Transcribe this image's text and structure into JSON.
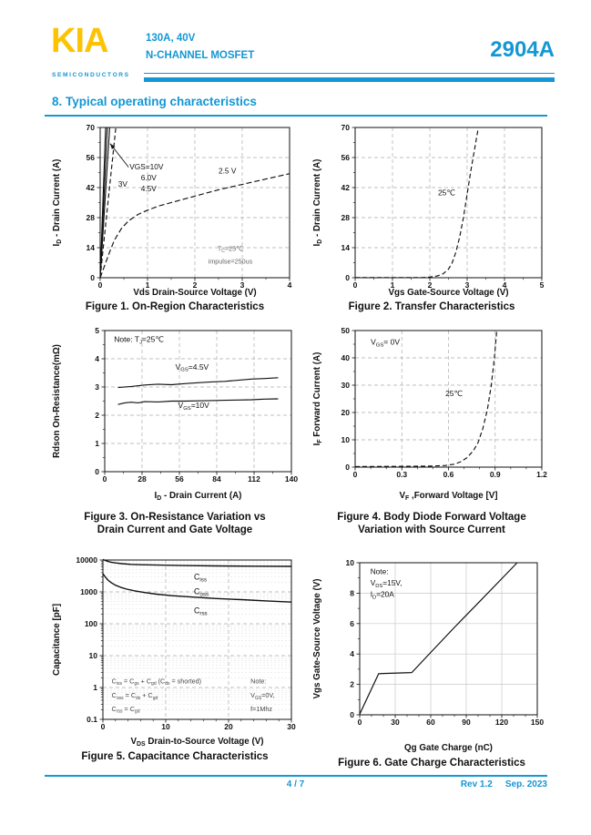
{
  "colors": {
    "accent": "#1397D5",
    "logo_yellow": "#FDC303"
  },
  "header": {
    "logo": "KIA",
    "logo_sub": "SEMICONDUCTORS",
    "rating": "130A, 40V",
    "device": "N-CHANNEL MOSFET",
    "part": "2904A"
  },
  "section": {
    "title": "8. Typical operating characteristics"
  },
  "footer": {
    "page": "4 / 7",
    "rev": "Rev 1.2",
    "date": "Sep. 2023"
  },
  "chart_data": [
    {
      "type": "line",
      "caption_lines": [
        "Figure 1. On-Region Characteristics"
      ],
      "xlabel": "Vds Drain-Source Voltage (V)",
      "ylabel": "I~D~ - Drain Current (A)",
      "xlim": [
        0,
        4
      ],
      "ylim": [
        0,
        70
      ],
      "xticks": [
        0,
        1,
        2,
        3,
        4
      ],
      "yticks": [
        0,
        14,
        28,
        42,
        56,
        70
      ],
      "xminor": 0.5,
      "yminor": 7,
      "grid": "dash",
      "series": [
        {
          "name": "VGS=10V",
          "points": [
            [
              0,
              0
            ],
            [
              0.115,
              70
            ]
          ]
        },
        {
          "name": "VGS=6.0V",
          "points": [
            [
              0,
              0
            ],
            [
              0.15,
              70
            ]
          ]
        },
        {
          "name": "VGS=4.5V",
          "points": [
            [
              0,
              0
            ],
            [
              0.2,
              70
            ]
          ]
        },
        {
          "name": "VGS=3V",
          "dash": "5,3",
          "points": [
            [
              0,
              0
            ],
            [
              0.14,
              30
            ],
            [
              0.33,
              70
            ]
          ]
        },
        {
          "name": "VGS=2.5V",
          "dash": "6,3",
          "points": [
            [
              0,
              0
            ],
            [
              0.1,
              6
            ],
            [
              0.2,
              12
            ],
            [
              0.3,
              17.5
            ],
            [
              0.45,
              23
            ],
            [
              0.6,
              26.5
            ],
            [
              0.8,
              29.5
            ],
            [
              1.0,
              31.5
            ],
            [
              1.25,
              33.5
            ],
            [
              1.5,
              35
            ],
            [
              2.0,
              38
            ],
            [
              2.5,
              41
            ],
            [
              3.0,
              43.5
            ],
            [
              3.5,
              46
            ],
            [
              4.0,
              48.5
            ]
          ]
        }
      ],
      "annotations": [
        {
          "text": "VGS=10V",
          "x": 0.62,
          "y": 50.5,
          "anchor": "start",
          "size": 8.3
        },
        {
          "text": "6.0V",
          "x": 0.86,
          "y": 45.3,
          "anchor": "start",
          "size": 8.3
        },
        {
          "text": "4.5V",
          "x": 0.86,
          "y": 40.3,
          "anchor": "start",
          "size": 8.3
        },
        {
          "text": "3V",
          "x": 0.38,
          "y": 42.5,
          "anchor": "start",
          "size": 8.3
        },
        {
          "text": "2.5 V",
          "x": 2.5,
          "y": 48.5,
          "anchor": "start",
          "size": 8.3
        },
        {
          "text": "T~C~=25℃",
          "x": 2.75,
          "y": 12.5,
          "anchor": "middle",
          "size": 7.2,
          "color": "#666"
        },
        {
          "text": "impulse=250us",
          "x": 2.75,
          "y": 6.5,
          "anchor": "middle",
          "size": 7.2,
          "color": "#666"
        }
      ],
      "arrows": [
        {
          "x1": 0.6,
          "y1": 51.5,
          "x2": 0.21,
          "y2": 62.5
        }
      ]
    },
    {
      "type": "line",
      "caption_lines": [
        "Figure 2. Transfer Characteristics"
      ],
      "xlabel": "Vgs Gate-Source Voltage (V)",
      "ylabel": "I~D~ - Drain Current (A)",
      "xlim": [
        0,
        5
      ],
      "ylim": [
        0,
        70
      ],
      "xticks": [
        0,
        1,
        2,
        3,
        4,
        5
      ],
      "yticks": [
        0,
        14,
        28,
        42,
        56,
        70
      ],
      "xminor": 0.5,
      "yminor": 7,
      "grid": "dash",
      "series": [
        {
          "name": "25C",
          "dash": "5,3",
          "points": [
            [
              0,
              0.1
            ],
            [
              1.8,
              0.1
            ],
            [
              2.0,
              0.3
            ],
            [
              2.2,
              0.8
            ],
            [
              2.35,
              1.8
            ],
            [
              2.5,
              4
            ],
            [
              2.6,
              7
            ],
            [
              2.7,
              12
            ],
            [
              2.8,
              19
            ],
            [
              2.9,
              28
            ],
            [
              3.0,
              39
            ],
            [
              3.1,
              50
            ],
            [
              3.2,
              60
            ],
            [
              3.3,
              70
            ]
          ]
        }
      ],
      "annotations": [
        {
          "text": "25℃",
          "x": 2.45,
          "y": 38.5,
          "anchor": "middle",
          "size": 8.5
        }
      ]
    },
    {
      "type": "line",
      "caption_lines": [
        "Figure 3. On-Resistance Variation  vs",
        "Drain Current and Gate Voltage"
      ],
      "xlabel": "I~D~ - Drain Current (A)",
      "ylabel": "Rdson On-Resistance(mΩ)",
      "xlim": [
        0,
        140
      ],
      "ylim": [
        0,
        5
      ],
      "xticks": [
        0,
        28,
        56,
        84,
        112,
        140
      ],
      "yticks": [
        0,
        1,
        2,
        3,
        4,
        5
      ],
      "xminor": 14,
      "yminor": 0.5,
      "grid": "dash",
      "series": [
        {
          "name": "VGS=4.5V",
          "points": [
            [
              10,
              2.98
            ],
            [
              20,
              3.02
            ],
            [
              30,
              3.07
            ],
            [
              40,
              3.1
            ],
            [
              50,
              3.08
            ],
            [
              60,
              3.12
            ],
            [
              70,
              3.15
            ],
            [
              80,
              3.18
            ],
            [
              90,
              3.2
            ],
            [
              100,
              3.24
            ],
            [
              110,
              3.28
            ],
            [
              120,
              3.3
            ],
            [
              130,
              3.33
            ]
          ]
        },
        {
          "name": "VGS=10V",
          "points": [
            [
              10,
              2.38
            ],
            [
              15,
              2.44
            ],
            [
              20,
              2.46
            ],
            [
              25,
              2.44
            ],
            [
              30,
              2.48
            ],
            [
              40,
              2.47
            ],
            [
              50,
              2.5
            ],
            [
              60,
              2.5
            ],
            [
              70,
              2.51
            ],
            [
              80,
              2.52
            ],
            [
              90,
              2.53
            ],
            [
              100,
              2.54
            ],
            [
              110,
              2.55
            ],
            [
              120,
              2.57
            ],
            [
              130,
              2.58
            ]
          ]
        }
      ],
      "annotations": [
        {
          "text": "Note:  T~J~=25℃",
          "x": 7,
          "y": 4.6,
          "anchor": "start",
          "size": 8.5
        },
        {
          "text": "V~GS~=4.5V",
          "x": 53,
          "y": 3.62,
          "anchor": "start",
          "size": 8.5
        },
        {
          "text": "V~GS~=10V",
          "x": 55,
          "y": 2.26,
          "anchor": "start",
          "size": 8.5
        }
      ]
    },
    {
      "type": "line",
      "caption_lines": [
        "Figure 4. Body Diode Forward Voltage",
        "Variation with Source Current"
      ],
      "xlabel": "V~F~ ,Forward Voltage [V]",
      "ylabel": "I~F~ Forward Current (A)",
      "xlim": [
        0,
        1.2
      ],
      "ylim": [
        0,
        50
      ],
      "xticks": [
        0,
        0.3,
        0.6,
        0.9,
        1.2
      ],
      "xtick_labels": [
        "0",
        "0.3",
        "0.6",
        "0.9",
        "1.2"
      ],
      "yticks": [
        0,
        10,
        20,
        30,
        40,
        50
      ],
      "xminor": 0.1,
      "yminor": 5,
      "grid": "dash",
      "series": [
        {
          "name": "25C",
          "dash": "5,3",
          "points": [
            [
              0,
              0.2
            ],
            [
              0.35,
              0.3
            ],
            [
              0.5,
              0.4
            ],
            [
              0.58,
              0.6
            ],
            [
              0.64,
              1.1
            ],
            [
              0.68,
              2
            ],
            [
              0.72,
              3.5
            ],
            [
              0.76,
              6
            ],
            [
              0.79,
              9
            ],
            [
              0.82,
              14
            ],
            [
              0.85,
              21
            ],
            [
              0.875,
              30
            ],
            [
              0.895,
              40
            ],
            [
              0.91,
              50
            ]
          ]
        }
      ],
      "annotations": [
        {
          "text": "V~GS~= 0V",
          "x": 0.1,
          "y": 44.8,
          "anchor": "start",
          "size": 8.5
        },
        {
          "text": "25℃",
          "x": 0.58,
          "y": 26,
          "anchor": "start",
          "size": 8.5
        }
      ]
    },
    {
      "type": "line",
      "caption_lines": [
        "Figure 5. Capacitance Characteristics"
      ],
      "xlabel": "V~DS~  Drain-to-Source Voltage (V)",
      "ylabel": "Capacitance [pF]",
      "xlim": [
        0,
        30
      ],
      "ylim": [
        0.1,
        10000
      ],
      "ylog": true,
      "xticks": [
        0,
        10,
        20,
        30
      ],
      "yticks": [
        0.1,
        1,
        10,
        100,
        1000,
        10000
      ],
      "ytick_labels": [
        "0.1",
        "1",
        "10",
        "100",
        "1000",
        "10000"
      ],
      "xminor": 2,
      "grid": "dash",
      "series": [
        {
          "name": "Ciss",
          "width": 1.4,
          "points": [
            [
              0,
              10400
            ],
            [
              0.6,
              9300
            ],
            [
              1.2,
              8600
            ],
            [
              2,
              8100
            ],
            [
              3,
              7700
            ],
            [
              4.5,
              7300
            ],
            [
              6,
              7100
            ],
            [
              9,
              6900
            ],
            [
              13,
              6700
            ],
            [
              18,
              6500
            ],
            [
              24,
              6400
            ],
            [
              30,
              6300
            ]
          ]
        },
        {
          "name": "Coss",
          "width": 1.4,
          "points": [
            [
              0,
              3700
            ],
            [
              0.4,
              2900
            ],
            [
              0.8,
              2350
            ],
            [
              1.3,
              1950
            ],
            [
              2,
              1620
            ],
            [
              2.8,
              1400
            ],
            [
              3.8,
              1220
            ],
            [
              5,
              1080
            ],
            [
              6.5,
              960
            ],
            [
              8.5,
              850
            ],
            [
              11,
              760
            ],
            [
              14,
              690
            ],
            [
              18,
              620
            ],
            [
              22,
              570
            ],
            [
              26,
              520
            ],
            [
              30,
              480
            ]
          ]
        }
      ],
      "annotations": [
        {
          "text": "C~iss~",
          "x": 14.5,
          "y": 2400,
          "anchor": "start",
          "size": 8.8
        },
        {
          "text": "C~oss~",
          "x": 14.5,
          "y": 850,
          "anchor": "start",
          "size": 8.8
        },
        {
          "text": "C~rss~",
          "x": 14.5,
          "y": 215,
          "anchor": "start",
          "size": 8.8
        },
        {
          "text": "C~iss~ = C~gs~ + C~gd~ (C~ds~ = shorted)",
          "x": 1.4,
          "y": 1.35,
          "anchor": "start",
          "size": 7.2,
          "color": "#444"
        },
        {
          "text": "C~oss~ = C~ds~ + C~gd~",
          "x": 1.4,
          "y": 0.48,
          "anchor": "start",
          "size": 7.2,
          "color": "#444"
        },
        {
          "text": "C~rss~ = C~gd~",
          "x": 1.4,
          "y": 0.18,
          "anchor": "start",
          "size": 7.2,
          "color": "#444"
        },
        {
          "text": "Note:",
          "x": 23.5,
          "y": 1.35,
          "anchor": "start",
          "size": 7.2,
          "color": "#444"
        },
        {
          "text": "V~GS~=0V,",
          "x": 23.5,
          "y": 0.48,
          "anchor": "start",
          "size": 7.2,
          "color": "#444"
        },
        {
          "text": "f=1Mhz",
          "x": 23.5,
          "y": 0.18,
          "anchor": "start",
          "size": 7.2,
          "color": "#444"
        }
      ]
    },
    {
      "type": "line",
      "caption_lines": [
        "Figure 6. Gate Charge Characteristics"
      ],
      "xlabel": "Qg Gate Charge (nC)",
      "ylabel": "Vgs Gate-Source Voltage (V)",
      "xlim": [
        0,
        150
      ],
      "ylim": [
        0,
        10
      ],
      "xticks": [
        0,
        30,
        60,
        90,
        120,
        150
      ],
      "yticks": [
        0,
        2,
        4,
        6,
        8,
        10
      ],
      "xminor": 10,
      "yminor": 1,
      "grid": "solid",
      "series": [
        {
          "name": "Qg",
          "width": 1.2,
          "points": [
            [
              0,
              0.05
            ],
            [
              16,
              2.7
            ],
            [
              20,
              2.72
            ],
            [
              44,
              2.78
            ],
            [
              60,
              4.1
            ],
            [
              80,
              5.75
            ],
            [
              100,
              7.35
            ],
            [
              120,
              8.95
            ],
            [
              133,
              10
            ]
          ]
        }
      ],
      "annotations": [
        {
          "text": "Note:",
          "x": 9,
          "y": 9.25,
          "anchor": "start",
          "size": 8.3
        },
        {
          "text": "V~DS~=15V,",
          "x": 9,
          "y": 8.5,
          "anchor": "start",
          "size": 8.3
        },
        {
          "text": "I~D~=20A",
          "x": 9,
          "y": 7.75,
          "anchor": "start",
          "size": 8.3
        }
      ]
    }
  ]
}
